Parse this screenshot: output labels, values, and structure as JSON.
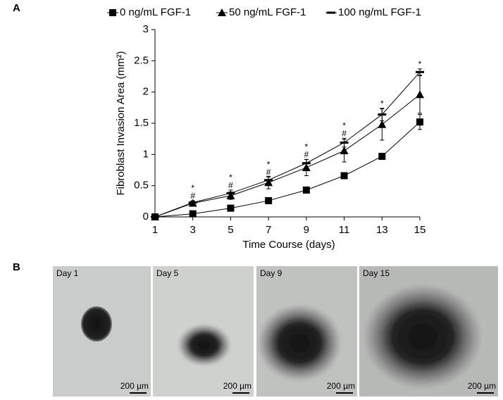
{
  "panel_labels": [
    "A",
    "B"
  ],
  "chart_data": {
    "type": "line",
    "x_label": "Time Course (days)",
    "y_label": "Fibroblast Invasion Area (mm²)",
    "x": [
      1,
      3,
      5,
      7,
      9,
      11,
      13,
      15
    ],
    "xlim": [
      1,
      15
    ],
    "xticks": [
      1,
      3,
      5,
      7,
      9,
      11,
      13,
      15
    ],
    "ylim": [
      0,
      3
    ],
    "yticks": [
      0,
      0.5,
      1,
      1.5,
      2,
      2.5,
      3
    ],
    "legend": "top",
    "series": [
      {
        "name": "0 ng/mL FGF-1",
        "color": "#000000",
        "marker": "square",
        "values": [
          0,
          0.05,
          0.14,
          0.26,
          0.43,
          0.66,
          0.97,
          1.52
        ],
        "errors": [
          0,
          0.01,
          0.02,
          0.02,
          0.05,
          0.02,
          0.02,
          0.12
        ]
      },
      {
        "name": "50 ng/mL FGF-1",
        "color": "#000000",
        "marker": "triangle",
        "values": [
          0,
          0.22,
          0.34,
          0.55,
          0.79,
          1.06,
          1.48,
          1.96
        ],
        "errors": [
          0,
          0.03,
          0.06,
          0.1,
          0.13,
          0.18,
          0.25,
          0.3
        ]
      },
      {
        "name": "100 ng/mL FGF-1",
        "color": "#000000",
        "marker": "dash",
        "values": [
          0,
          0.23,
          0.38,
          0.59,
          0.86,
          1.19,
          1.64,
          2.32
        ],
        "errors": [
          0,
          0.03,
          0.05,
          0.05,
          0.06,
          0.07,
          0.1,
          0.05
        ]
      }
    ],
    "annotations": [
      {
        "x": 3,
        "lines": [
          "*",
          "#"
        ]
      },
      {
        "x": 5,
        "lines": [
          "*",
          "#"
        ]
      },
      {
        "x": 7,
        "lines": [
          "*",
          "#"
        ]
      },
      {
        "x": 9,
        "lines": [
          "*",
          "#"
        ]
      },
      {
        "x": 11,
        "lines": [
          "*",
          "#"
        ]
      },
      {
        "x": 13,
        "lines": [
          "*"
        ]
      },
      {
        "x": 15,
        "lines": [
          "*"
        ]
      }
    ]
  },
  "images": [
    {
      "label": "Day 1",
      "scale": "200 µm"
    },
    {
      "label": "Day 5",
      "scale": "200 µm"
    },
    {
      "label": "Day 9",
      "scale": "200 µm"
    },
    {
      "label": "Day 15",
      "scale": "200 µm"
    }
  ]
}
